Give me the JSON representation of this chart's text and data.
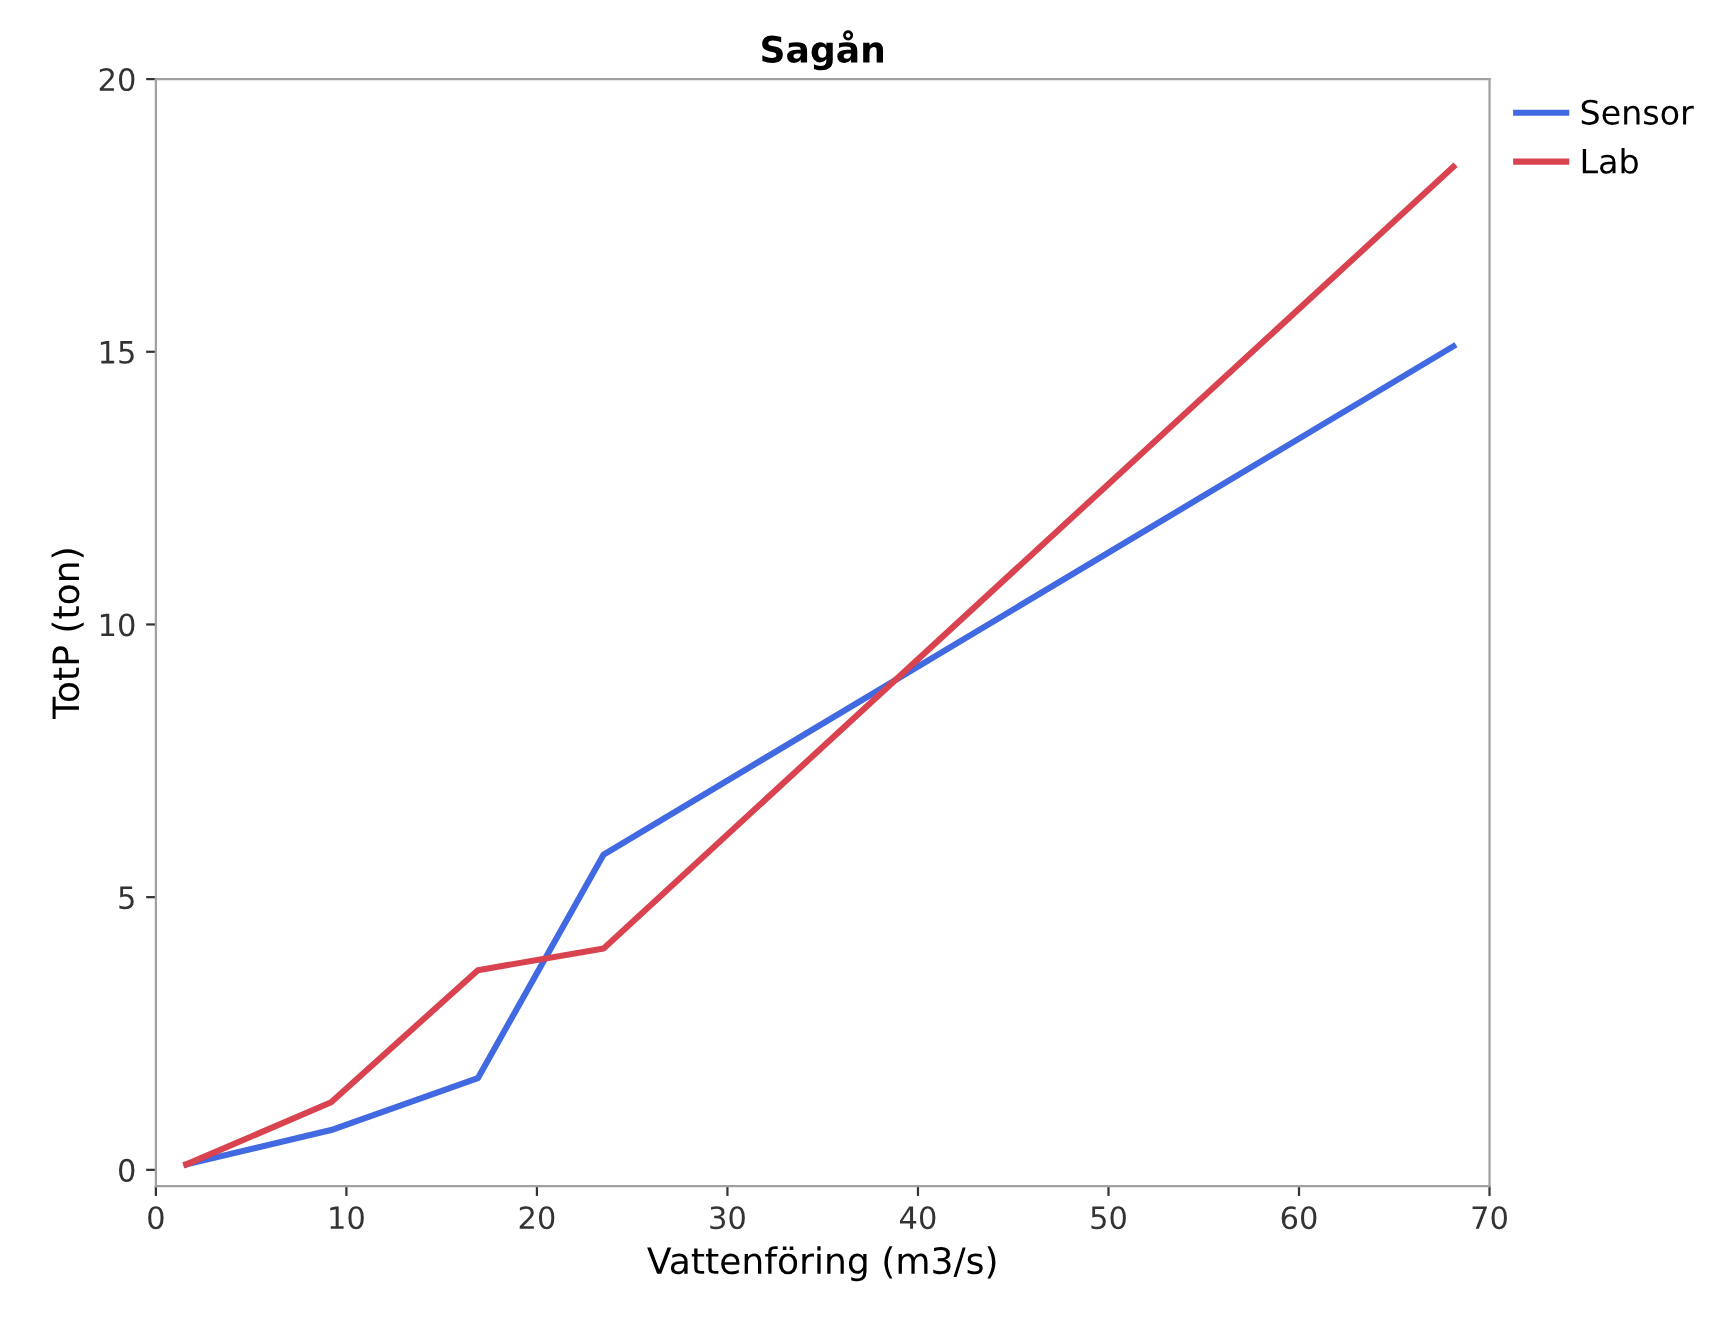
{
  "chart_data": {
    "type": "line",
    "title": "Sagån",
    "xlabel": "Vattenföring (m3/s)",
    "ylabel": "TotP (ton)",
    "x": [
      1.6,
      9.2,
      16.9,
      23.5,
      68.1
    ],
    "series": [
      {
        "name": "Sensor",
        "color": "#4169e1",
        "values": [
          0.1,
          0.73,
          1.68,
          5.78,
          15.1
        ]
      },
      {
        "name": "Lab",
        "color": "#d9434f",
        "values": [
          0.1,
          1.24,
          3.66,
          4.06,
          18.39
        ]
      }
    ],
    "xlim": [
      0,
      70
    ],
    "xticks": [
      0,
      10,
      20,
      30,
      40,
      50,
      60,
      70
    ],
    "ylim": [
      -0.3,
      20
    ],
    "yticks": [
      0,
      5,
      10,
      15,
      20
    ],
    "grid": false,
    "legend": "top right",
    "marker": "none",
    "line_style": "solid"
  }
}
